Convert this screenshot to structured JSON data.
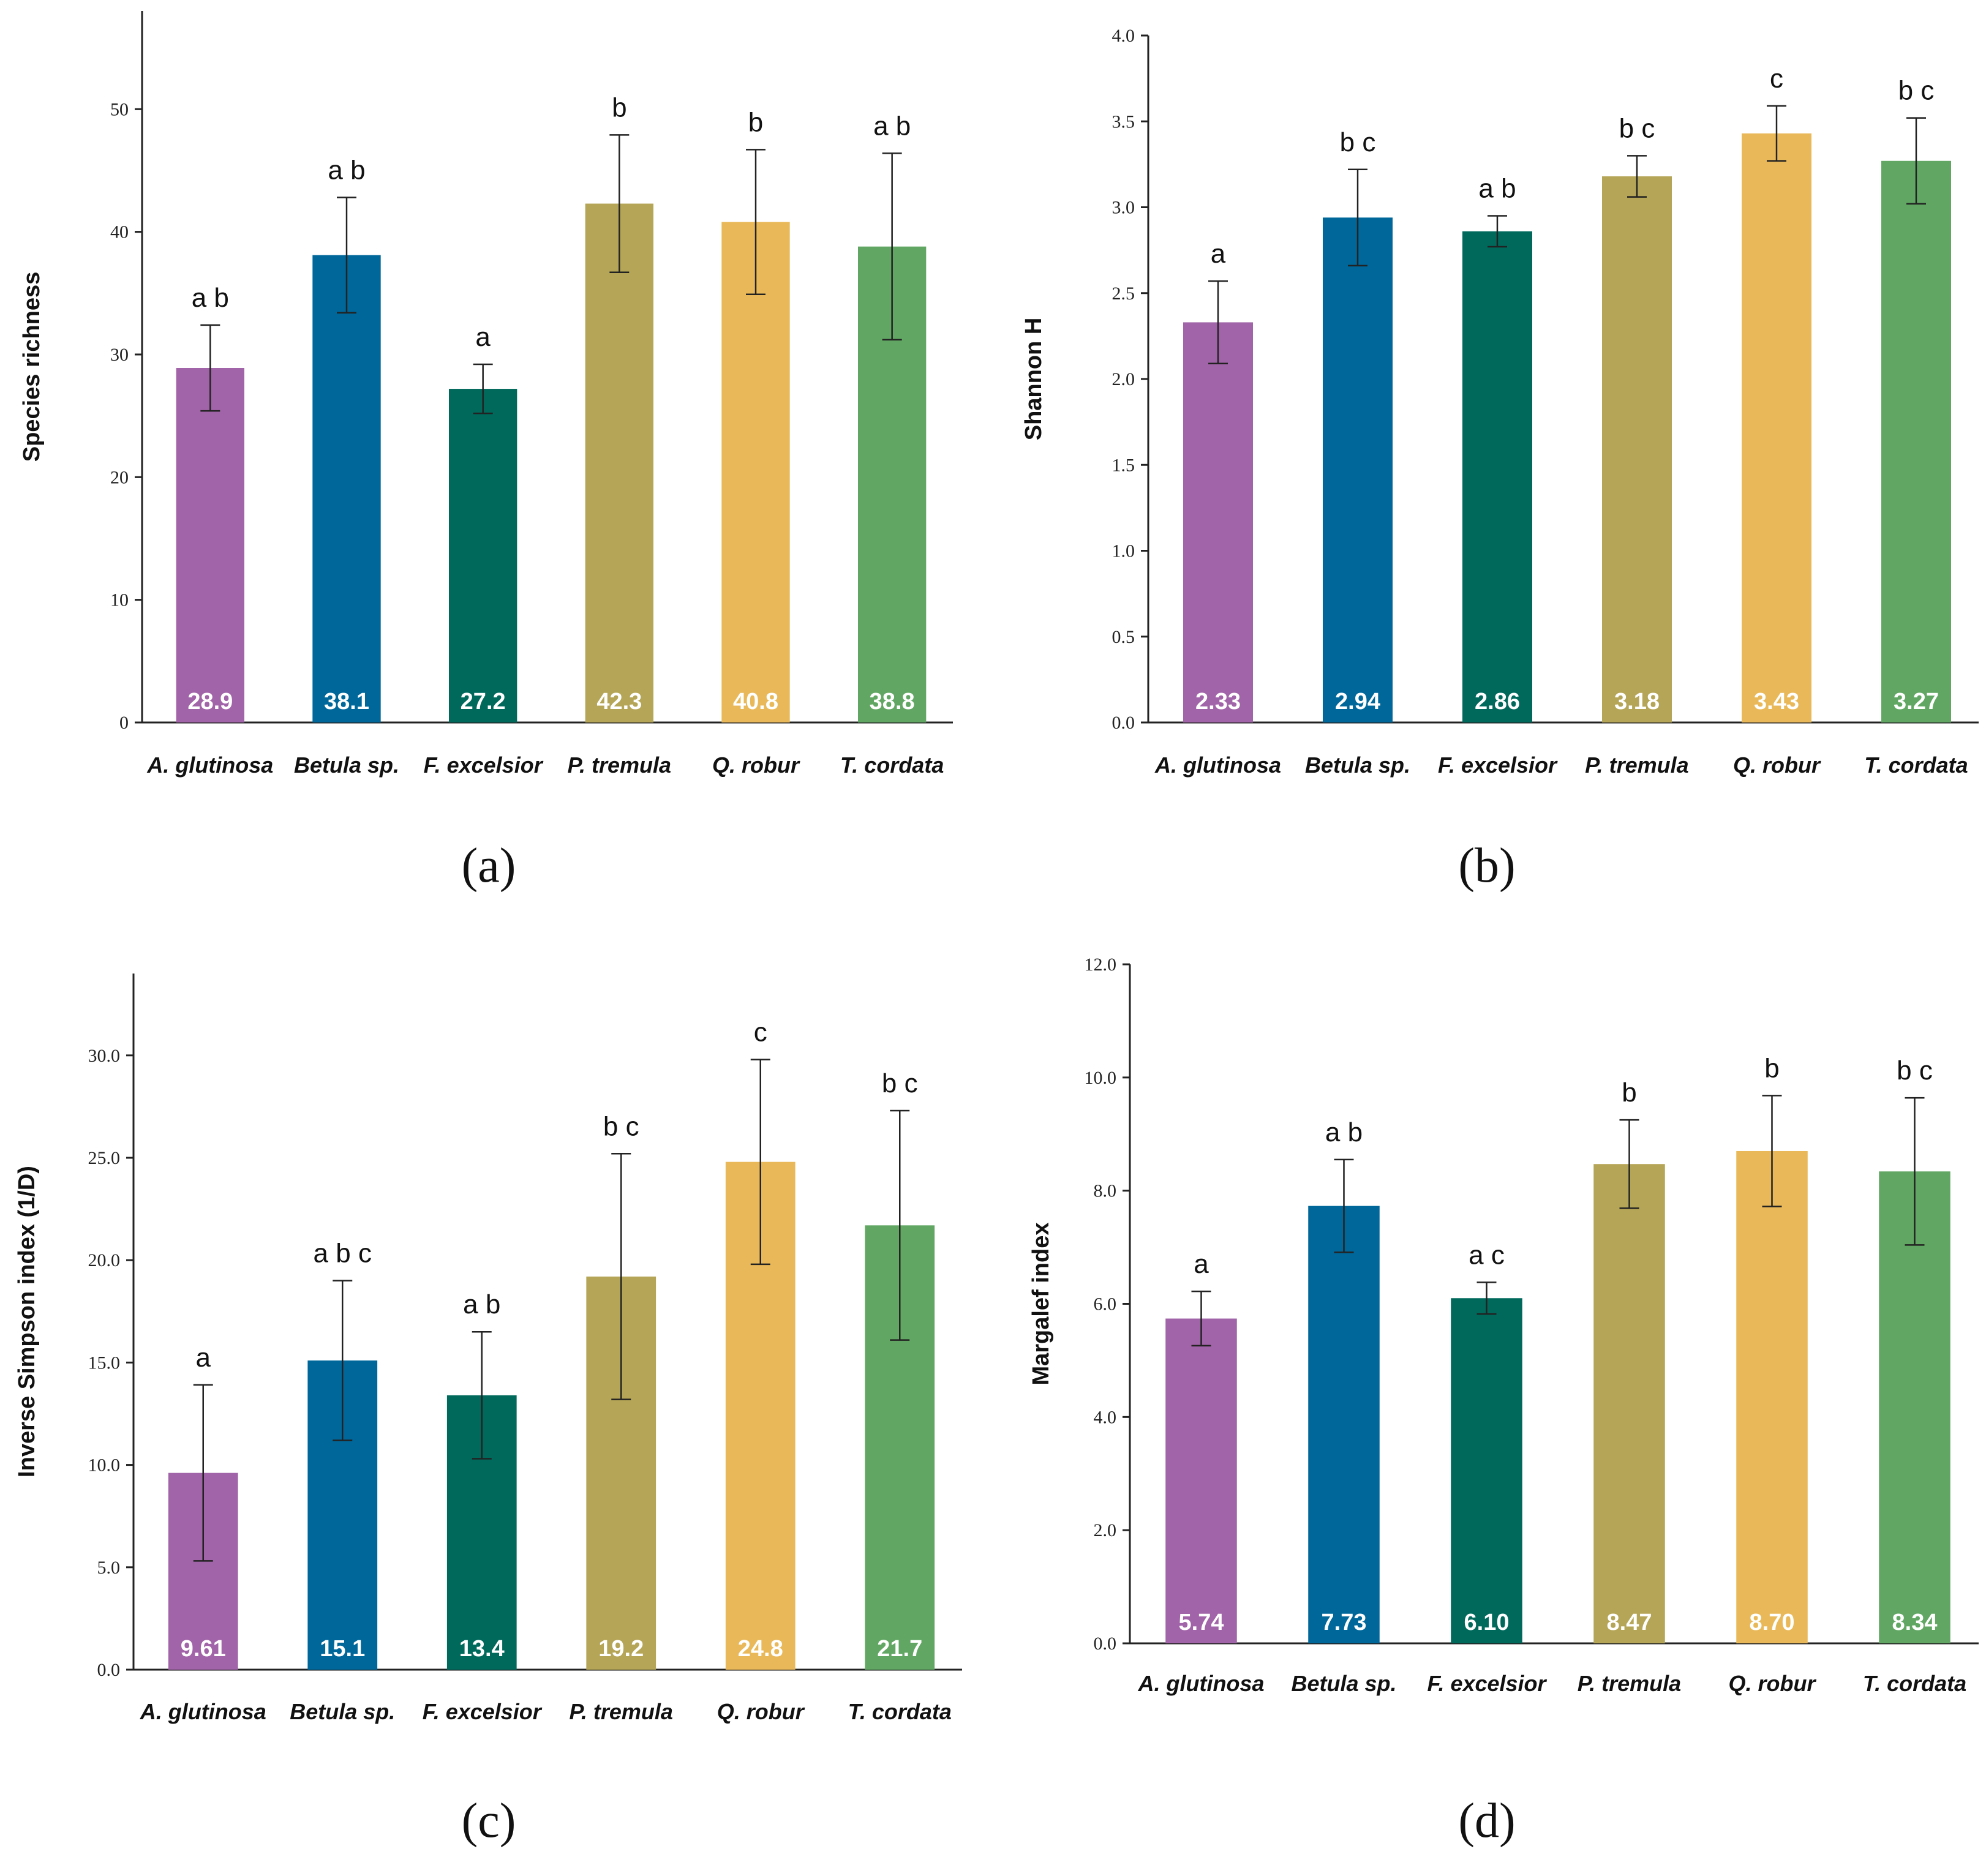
{
  "categories": [
    "A. glutinosa",
    "Betula sp.",
    "F. excelsior",
    "P. tremula",
    "Q. robur",
    "T. cordata"
  ],
  "colors": [
    "#a264a8",
    "#00679a",
    "#00695c",
    "#b5a556",
    "#e9b959",
    "#61a763"
  ],
  "chart_data": [
    {
      "type": "bar",
      "panel_label": "(a)",
      "ylabel": "Species richness",
      "ylim": [
        0,
        58
      ],
      "yticks": [
        "0",
        "10",
        "20",
        "30",
        "40",
        "50"
      ],
      "ytick_values": [
        0,
        10,
        20,
        30,
        40,
        50
      ],
      "values": [
        28.9,
        38.1,
        27.2,
        42.3,
        40.8,
        38.8
      ],
      "value_labels": [
        "28.9",
        "38.1",
        "27.2",
        "42.3",
        "40.8",
        "38.8"
      ],
      "error": [
        3.5,
        4.7,
        2.0,
        5.6,
        5.9,
        7.6
      ],
      "significance": [
        "a b",
        "a b",
        "a",
        "b",
        "b",
        "a b"
      ]
    },
    {
      "type": "bar",
      "panel_label": "(b)",
      "ylabel": "Shannon H",
      "ylim": [
        0,
        4.0
      ],
      "yticks": [
        "0.0",
        "0.5",
        "1.0",
        "1.5",
        "2.0",
        "2.5",
        "3.0",
        "3.5",
        "4.0"
      ],
      "ytick_values": [
        0,
        0.5,
        1.0,
        1.5,
        2.0,
        2.5,
        3.0,
        3.5,
        4.0
      ],
      "values": [
        2.33,
        2.94,
        2.86,
        3.18,
        3.43,
        3.27
      ],
      "value_labels": [
        "2.33",
        "2.94",
        "2.86",
        "3.18",
        "3.43",
        "3.27"
      ],
      "error": [
        0.24,
        0.28,
        0.09,
        0.12,
        0.16,
        0.25
      ],
      "significance": [
        "a",
        "b c",
        "a b",
        "b c",
        "c",
        "b c"
      ]
    },
    {
      "type": "bar",
      "panel_label": "(c)",
      "ylabel": "Inverse Simpson index (1/D)",
      "ylim": [
        0,
        34
      ],
      "yticks": [
        "0.0",
        "5.0",
        "10.0",
        "15.0",
        "20.0",
        "25.0",
        "30.0"
      ],
      "ytick_values": [
        0,
        5,
        10,
        15,
        20,
        25,
        30
      ],
      "values": [
        9.61,
        15.1,
        13.4,
        19.2,
        24.8,
        21.7
      ],
      "value_labels": [
        "9.61",
        "15.1",
        "13.4",
        "19.2",
        "24.8",
        "21.7"
      ],
      "error": [
        4.3,
        3.9,
        3.1,
        6.0,
        5.0,
        5.6
      ],
      "significance": [
        "a",
        "a b c",
        "a b",
        "b c",
        "c",
        "b c"
      ]
    },
    {
      "type": "bar",
      "panel_label": "(d)",
      "ylabel": "Margalef index",
      "ylim": [
        0,
        12.0
      ],
      "yticks": [
        "0.0",
        "2.0",
        "4.0",
        "6.0",
        "8.0",
        "10.0",
        "12.0"
      ],
      "ytick_values": [
        0,
        2,
        4,
        6,
        8,
        10,
        12
      ],
      "values": [
        5.74,
        7.73,
        6.1,
        8.47,
        8.7,
        8.34
      ],
      "value_labels": [
        "5.74",
        "7.73",
        "6.10",
        "8.47",
        "8.70",
        "8.34"
      ],
      "error": [
        0.48,
        0.82,
        0.28,
        0.78,
        0.98,
        1.3
      ],
      "significance": [
        "a",
        "a b",
        "a c",
        "b",
        "b",
        "b c"
      ]
    }
  ]
}
